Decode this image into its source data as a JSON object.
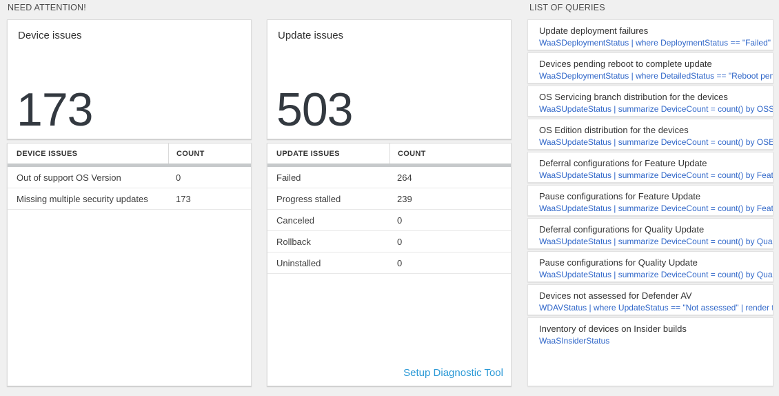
{
  "sections": {
    "need_attention": "NEED ATTENTION!",
    "list_of_queries": "LIST OF QUERIES"
  },
  "device_card": {
    "title": "Device issues",
    "count": "173"
  },
  "update_card": {
    "title": "Update issues",
    "count": "503"
  },
  "device_table": {
    "headers": [
      "DEVICE ISSUES",
      "COUNT"
    ],
    "rows": [
      [
        "Out of support OS Version",
        "0"
      ],
      [
        "Missing multiple security updates",
        "173"
      ]
    ]
  },
  "update_table": {
    "headers": [
      "UPDATE ISSUES",
      "COUNT"
    ],
    "rows": [
      [
        "Failed",
        "264"
      ],
      [
        "Progress stalled",
        "239"
      ],
      [
        "Canceled",
        "0"
      ],
      [
        "Rollback",
        "0"
      ],
      [
        "Uninstalled",
        "0"
      ]
    ],
    "footer_link": "Setup Diagnostic Tool"
  },
  "queries": [
    {
      "title": "Update deployment failures",
      "query": "WaaSDeploymentStatus | where DeploymentStatus == \"Failed\" |..."
    },
    {
      "title": "Devices pending reboot to complete update",
      "query": "WaaSDeploymentStatus | where DetailedStatus == \"Reboot pend..."
    },
    {
      "title": "OS Servicing branch distribution for the devices",
      "query": "WaaSUpdateStatus | summarize DeviceCount = count() by OSSer..."
    },
    {
      "title": "OS Edition distribution for the devices",
      "query": "WaaSUpdateStatus | summarize DeviceCount = count() by OSEdit..."
    },
    {
      "title": "Deferral configurations for Feature Update",
      "query": "WaaSUpdateStatus | summarize DeviceCount = count() by Featur..."
    },
    {
      "title": "Pause configurations for Feature Update",
      "query": "WaaSUpdateStatus | summarize DeviceCount = count() by Featur..."
    },
    {
      "title": "Deferral configurations for Quality Update",
      "query": "WaaSUpdateStatus | summarize DeviceCount = count() by Qualit..."
    },
    {
      "title": "Pause configurations for Quality Update",
      "query": "WaaSUpdateStatus | summarize DeviceCount = count() by Qualit..."
    },
    {
      "title": "Devices not assessed for Defender AV",
      "query": "WDAVStatus | where UpdateStatus == \"Not assessed\" | render ta..."
    },
    {
      "title": "Inventory of devices on Insider builds",
      "query": "WaaSInsiderStatus"
    }
  ],
  "colors": {
    "background": "#f0f0f0",
    "query_link": "#3067c9",
    "action_link": "#2a99d6",
    "big_number": "#333940",
    "thick_divider": "#c6c9cb"
  }
}
